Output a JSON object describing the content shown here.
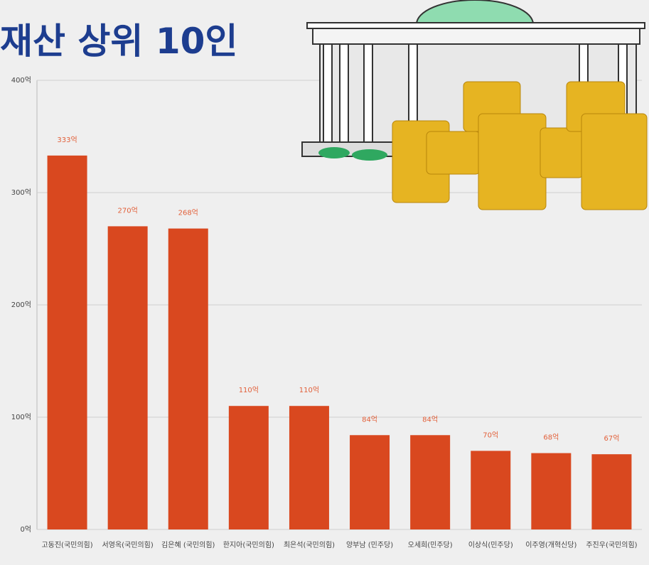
{
  "chart_data": {
    "type": "bar",
    "title": "재산 상위 10인",
    "categories": [
      "고동진(국민의힘)",
      "서영옥(국민의힘)",
      "김은혜 (국민의힘)",
      "한지아(국민의힘)",
      "최은석(국민의힘)",
      "양부남 (민주당)",
      "오세희(민주당)",
      "이상식(민주당)",
      "이주영(개혁신당)",
      "주진우(국민의힘)"
    ],
    "values": [
      333,
      270,
      268,
      110,
      110,
      84,
      84,
      70,
      68,
      67
    ],
    "value_labels": [
      "333억",
      "270억",
      "268억",
      "110억",
      "110억",
      "84억",
      "84억",
      "70억",
      "68억",
      "67억"
    ],
    "color": "#d9481f",
    "ylim": [
      0,
      400
    ],
    "yticks": [
      {
        "value": 0,
        "label": "0억"
      },
      {
        "value": 100,
        "label": "100억"
      },
      {
        "value": 200,
        "label": "200억"
      },
      {
        "value": 300,
        "label": "300억"
      },
      {
        "value": 400,
        "label": "400억"
      }
    ],
    "grid": true
  }
}
